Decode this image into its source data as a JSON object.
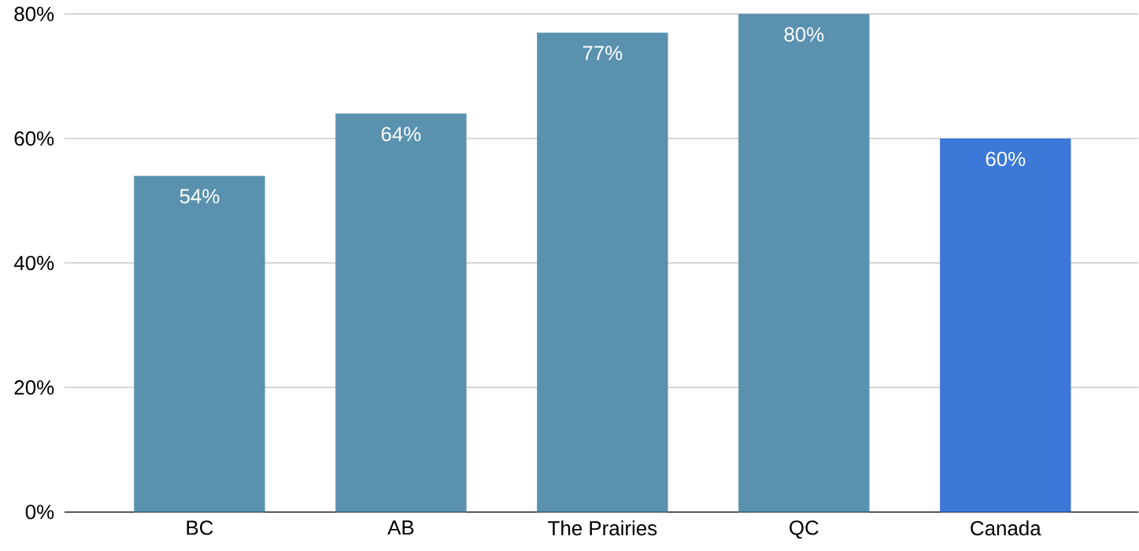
{
  "chart_data": {
    "type": "bar",
    "categories": [
      "BC",
      "AB",
      "The Prairies",
      "QC",
      "Canada"
    ],
    "values": [
      54,
      64,
      77,
      80,
      60
    ],
    "colors": [
      "#5991af",
      "#5991af",
      "#5991af",
      "#5991af",
      "#3c78d8"
    ],
    "value_labels": [
      "54%",
      "64%",
      "77%",
      "80%",
      "60%"
    ],
    "ylim": [
      0,
      80
    ],
    "yticks": [
      {
        "value": 0,
        "label": "0%"
      },
      {
        "value": 20,
        "label": "20%"
      },
      {
        "value": 40,
        "label": "40%"
      },
      {
        "value": 60,
        "label": "60%"
      },
      {
        "value": 80,
        "label": "80%"
      }
    ],
    "grid": "y"
  }
}
